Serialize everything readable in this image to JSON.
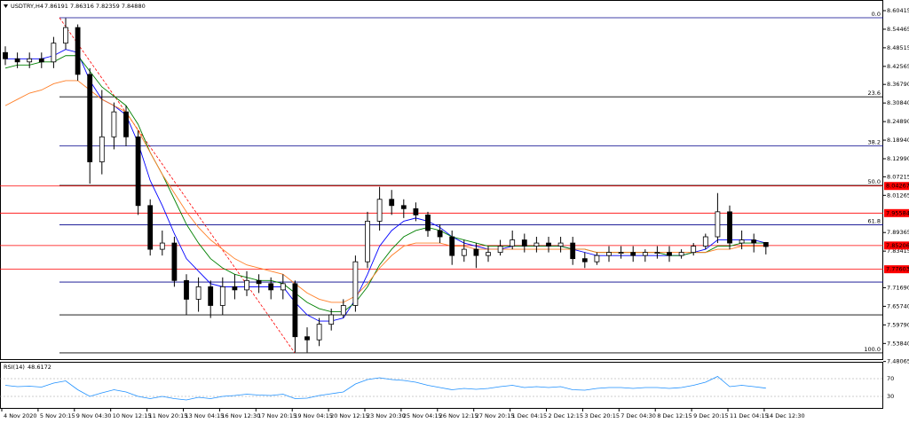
{
  "chart_data": {
    "type": "candlestick",
    "symbol": "USDTRY,H4",
    "ohlc_text": "7.86191 7.86316 7.82359 7.84880",
    "ylim": [
      7.474,
      8.624
    ],
    "yticks": [
      8.60415,
      8.54465,
      8.48515,
      8.42565,
      {
        "value": 8.3679,
        "label": "8.36790"
      },
      {
        "value": 8.3084,
        "label": "8.30840"
      },
      {
        "value": 8.2489,
        "label": "8.24890"
      },
      {
        "value": 8.1894,
        "label": "8.18940"
      },
      {
        "value": 8.1299,
        "label": "8.12990"
      },
      8.07215,
      8.01265,
      7.89365,
      7.83415,
      {
        "value": 7.7169,
        "label": "7.71690"
      },
      {
        "value": 7.6574,
        "label": "7.65740"
      },
      {
        "value": 7.5979,
        "label": "7.59790"
      },
      {
        "value": 7.5384,
        "label": "7.53840"
      },
      7.48065
    ],
    "price_lines": [
      8.04267,
      7.95584,
      7.85206,
      7.77603
    ],
    "fib_levels": [
      {
        "label": "0.0",
        "price": 8.5814
      },
      {
        "label": "23.6",
        "price": 8.3281
      },
      {
        "label": "38.2",
        "price": 8.1714
      },
      {
        "label": "50.0",
        "price": 8.0448
      },
      {
        "label": "61.8",
        "price": 7.9182
      },
      {
        "label": "100.0",
        "price": 7.5082
      }
    ],
    "extra_lines": [
      {
        "price": 7.735,
        "color": "#00008b"
      },
      {
        "price": 7.63,
        "color": "#000000"
      }
    ],
    "x_labels": [
      "4 Nov 2020",
      "5 Nov 20:15",
      "9 Nov 04:30",
      "10 Nov 12:15",
      "11 Nov 20:15",
      "13 Nov 04:15",
      "16 Nov 12:30",
      "17 Nov 20:15",
      "19 Nov 04:15",
      "20 Nov 12:15",
      "23 Nov 20:30",
      "25 Nov 04:15",
      "26 Nov 12:15",
      "27 Nov 20:15",
      "1 Dec 04:15",
      "2 Dec 12:15",
      "3 Dec 20:15",
      "7 Dec 04:30",
      "8 Dec 12:15",
      "9 Dec 20:15",
      "11 Dec 04:15",
      "14 Dec 12:30"
    ],
    "open": [
      8.47,
      8.45,
      8.44,
      8.45,
      8.44,
      8.5,
      8.55,
      8.4,
      8.12,
      8.2,
      8.28,
      8.2,
      7.98,
      7.84,
      7.86,
      7.74,
      7.68,
      7.72,
      7.66,
      7.72,
      7.71,
      7.74,
      7.73,
      7.71,
      7.73,
      7.56,
      7.55,
      7.6,
      7.63,
      7.66,
      7.8,
      7.93,
      8.0,
      7.98,
      7.97,
      7.95,
      7.9,
      7.88,
      7.82,
      7.84,
      7.82,
      7.83,
      7.85,
      7.87,
      7.85,
      7.86,
      7.85,
      7.86,
      7.81,
      7.8,
      7.82,
      7.83,
      7.83,
      7.82,
      7.83,
      7.83,
      7.82,
      7.83,
      7.85,
      7.88,
      7.96,
      7.86,
      7.87,
      7.86191
    ],
    "high": [
      8.49,
      8.47,
      8.47,
      8.47,
      8.52,
      8.58,
      8.56,
      8.42,
      8.35,
      8.31,
      8.3,
      8.22,
      8.0,
      7.9,
      7.88,
      7.76,
      7.75,
      7.74,
      7.75,
      7.76,
      7.77,
      7.76,
      7.75,
      7.76,
      7.74,
      7.59,
      7.62,
      7.65,
      7.68,
      7.82,
      7.96,
      8.04,
      8.03,
      8.0,
      7.99,
      7.96,
      7.92,
      7.9,
      7.87,
      7.86,
      7.85,
      7.87,
      7.9,
      7.89,
      7.88,
      7.88,
      7.88,
      7.88,
      7.83,
      7.83,
      7.85,
      7.85,
      7.85,
      7.84,
      7.85,
      7.85,
      7.84,
      7.86,
      7.89,
      8.02,
      7.98,
      7.9,
      7.89,
      7.86316
    ],
    "low": [
      8.43,
      8.42,
      8.42,
      8.42,
      8.42,
      8.48,
      8.38,
      8.05,
      8.08,
      8.16,
      8.17,
      7.95,
      7.82,
      7.82,
      7.72,
      7.63,
      7.64,
      7.62,
      7.63,
      7.68,
      7.69,
      7.7,
      7.68,
      7.68,
      7.51,
      7.51,
      7.53,
      7.58,
      7.62,
      7.64,
      7.78,
      7.9,
      7.95,
      7.94,
      7.93,
      7.88,
      7.86,
      7.79,
      7.8,
      7.78,
      7.8,
      7.82,
      7.84,
      7.83,
      7.83,
      7.83,
      7.83,
      7.79,
      7.78,
      7.79,
      7.8,
      7.81,
      7.8,
      7.8,
      7.81,
      7.8,
      7.81,
      7.82,
      7.84,
      7.86,
      7.84,
      7.84,
      7.83,
      7.82359
    ],
    "close": [
      8.45,
      8.44,
      8.45,
      8.44,
      8.5,
      8.55,
      8.4,
      8.12,
      8.2,
      8.28,
      8.2,
      7.98,
      7.84,
      7.86,
      7.74,
      7.68,
      7.72,
      7.66,
      7.72,
      7.71,
      7.74,
      7.73,
      7.71,
      7.73,
      7.56,
      7.55,
      7.6,
      7.63,
      7.66,
      7.8,
      7.93,
      8.0,
      7.98,
      7.97,
      7.95,
      7.9,
      7.88,
      7.82,
      7.84,
      7.82,
      7.83,
      7.85,
      7.87,
      7.85,
      7.86,
      7.85,
      7.86,
      7.81,
      7.8,
      7.82,
      7.83,
      7.83,
      7.82,
      7.83,
      7.83,
      7.82,
      7.83,
      7.85,
      7.88,
      7.96,
      7.86,
      7.87,
      7.86,
      7.8488
    ],
    "ma": [
      {
        "color": "#0000ff",
        "values": [
          8.45,
          8.45,
          8.45,
          8.45,
          8.46,
          8.48,
          8.47,
          8.38,
          8.32,
          8.3,
          8.27,
          8.18,
          8.06,
          7.98,
          7.89,
          7.81,
          7.77,
          7.73,
          7.72,
          7.72,
          7.72,
          7.72,
          7.72,
          7.72,
          7.67,
          7.63,
          7.61,
          7.61,
          7.62,
          7.68,
          7.76,
          7.85,
          7.9,
          7.93,
          7.94,
          7.93,
          7.91,
          7.88,
          7.86,
          7.85,
          7.84,
          7.84,
          7.85,
          7.85,
          7.85,
          7.85,
          7.85,
          7.84,
          7.83,
          7.82,
          7.82,
          7.82,
          7.82,
          7.82,
          7.82,
          7.82,
          7.82,
          7.83,
          7.84,
          7.87,
          7.87,
          7.87,
          7.87,
          7.86
        ]
      },
      {
        "color": "#008000",
        "values": [
          8.42,
          8.43,
          8.43,
          8.44,
          8.44,
          8.46,
          8.46,
          8.41,
          8.36,
          8.33,
          8.3,
          8.24,
          8.15,
          8.08,
          8.0,
          7.92,
          7.86,
          7.81,
          7.78,
          7.76,
          7.75,
          7.74,
          7.74,
          7.73,
          7.7,
          7.67,
          7.65,
          7.64,
          7.64,
          7.67,
          7.72,
          7.79,
          7.84,
          7.88,
          7.9,
          7.91,
          7.9,
          7.88,
          7.87,
          7.86,
          7.85,
          7.85,
          7.85,
          7.85,
          7.85,
          7.85,
          7.85,
          7.84,
          7.84,
          7.83,
          7.83,
          7.83,
          7.83,
          7.83,
          7.83,
          7.82,
          7.82,
          7.83,
          7.83,
          7.85,
          7.85,
          7.86,
          7.86,
          7.86
        ]
      },
      {
        "color": "#ff7f27",
        "values": [
          8.3,
          8.32,
          8.34,
          8.35,
          8.37,
          8.38,
          8.38,
          8.35,
          8.32,
          8.3,
          8.28,
          8.22,
          8.15,
          8.08,
          8.02,
          7.96,
          7.91,
          7.87,
          7.84,
          7.81,
          7.79,
          7.78,
          7.77,
          7.76,
          7.73,
          7.7,
          7.68,
          7.67,
          7.67,
          7.69,
          7.73,
          7.78,
          7.82,
          7.85,
          7.86,
          7.86,
          7.86,
          7.85,
          7.85,
          7.84,
          7.84,
          7.84,
          7.84,
          7.84,
          7.84,
          7.84,
          7.84,
          7.84,
          7.84,
          7.83,
          7.83,
          7.83,
          7.83,
          7.83,
          7.83,
          7.83,
          7.83,
          7.83,
          7.83,
          7.84,
          7.84,
          7.85,
          7.85,
          7.85
        ]
      }
    ],
    "rsi_label": "RSI(14)",
    "rsi_color": "#1e90ff",
    "rsi_lim": [
      0,
      100
    ],
    "rsi_ticks": [
      70,
      30
    ],
    "rsi": [
      55,
      52,
      53,
      51,
      60,
      65,
      45,
      30,
      38,
      45,
      40,
      30,
      25,
      30,
      25,
      22,
      28,
      25,
      30,
      32,
      35,
      33,
      32,
      35,
      25,
      26,
      32,
      36,
      40,
      58,
      68,
      72,
      68,
      66,
      62,
      55,
      50,
      45,
      48,
      46,
      48,
      52,
      55,
      50,
      52,
      50,
      52,
      45,
      44,
      48,
      50,
      50,
      48,
      50,
      50,
      48,
      50,
      55,
      62,
      75,
      52,
      55,
      52,
      48.6172
    ]
  }
}
